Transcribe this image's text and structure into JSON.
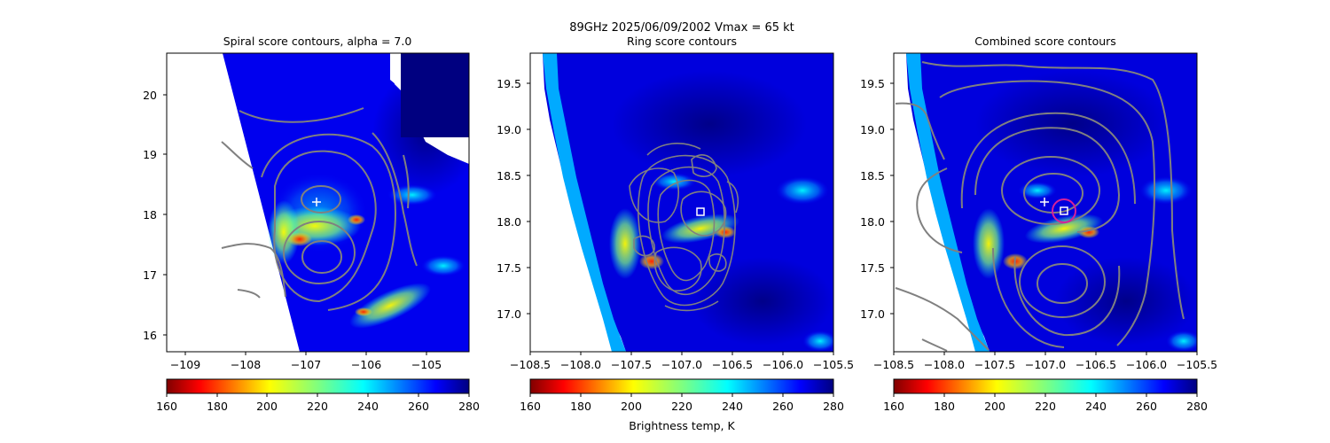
{
  "suptitle_line1": "89GHz  2025/06/09/2002    Vmax = 65 kt",
  "colorbar_label": "Brightness temp, K",
  "colors": {
    "spiral_marker": "#ffffff",
    "center_square": "#ffffff",
    "combined_circle": "#d6219a",
    "contour": "#808080",
    "missing_data": "#ffffff"
  },
  "colormap": {
    "name": "jet_r",
    "range": [
      160,
      280
    ],
    "ticks": [
      "160",
      "180",
      "200",
      "220",
      "240",
      "260",
      "280"
    ]
  },
  "chart_data": [
    {
      "type": "heatmap",
      "title": "Spiral score contours, alpha =  7.0",
      "xlim": [
        -109.4,
        -104.2
      ],
      "ylim": [
        15.7,
        20.7
      ],
      "xticks": [
        -109,
        -108,
        -107,
        -106,
        -105
      ],
      "xtick_labels": [
        "−109",
        "−108",
        "−107",
        "−106",
        "−105"
      ],
      "yticks": [
        16,
        17,
        18,
        19,
        20
      ],
      "ytick_labels": [
        "16",
        "17",
        "18",
        "19",
        "20"
      ],
      "markers": [
        {
          "symbol": "plus",
          "x": -106.8,
          "y": 18.2
        }
      ],
      "contours": "gray score contours",
      "colorbar_ticks": [
        "160",
        "180",
        "200",
        "220",
        "240",
        "260",
        "280"
      ]
    },
    {
      "type": "heatmap",
      "title": "Ring score contours",
      "xlim": [
        -108.5,
        -105.3
      ],
      "ylim": [
        16.65,
        19.82
      ],
      "xticks": [
        -108.5,
        -108.0,
        -107.5,
        -107.0,
        -106.5,
        -106.0,
        -105.5
      ],
      "xtick_labels": [
        "−108.5",
        "−108.0",
        "−107.5",
        "−107.0",
        "−106.5",
        "−106.0",
        "−105.5"
      ],
      "yticks": [
        17.0,
        17.5,
        18.0,
        18.5,
        19.0,
        19.5
      ],
      "ytick_labels": [
        "17.0",
        "17.5",
        "18.0",
        "18.5",
        "19.0",
        "19.5"
      ],
      "markers": [
        {
          "symbol": "square",
          "x": -106.65,
          "y": 18.1
        }
      ],
      "contours": "gray score contours",
      "colorbar_ticks": [
        "160",
        "180",
        "200",
        "220",
        "240",
        "260",
        "280"
      ]
    },
    {
      "type": "heatmap",
      "title": "Combined score contours",
      "xlim": [
        -108.5,
        -105.3
      ],
      "ylim": [
        16.65,
        19.82
      ],
      "xticks": [
        -108.5,
        -108.0,
        -107.5,
        -107.0,
        -106.5,
        -106.0,
        -105.5
      ],
      "xtick_labels": [
        "−108.5",
        "−108.0",
        "−107.5",
        "−107.0",
        "−106.5",
        "−106.0",
        "−105.5"
      ],
      "yticks": [
        17.0,
        17.5,
        18.0,
        18.5,
        19.0,
        19.5
      ],
      "ytick_labels": [
        "17.0",
        "17.5",
        "18.0",
        "18.5",
        "19.0",
        "19.5"
      ],
      "markers": [
        {
          "symbol": "plus",
          "x": -106.8,
          "y": 18.2
        },
        {
          "symbol": "square",
          "x": -106.55,
          "y": 18.1
        },
        {
          "symbol": "circle",
          "x": -106.55,
          "y": 18.1
        }
      ],
      "contours": "gray score contours",
      "colorbar_ticks": [
        "160",
        "180",
        "200",
        "220",
        "240",
        "260",
        "280"
      ]
    }
  ]
}
